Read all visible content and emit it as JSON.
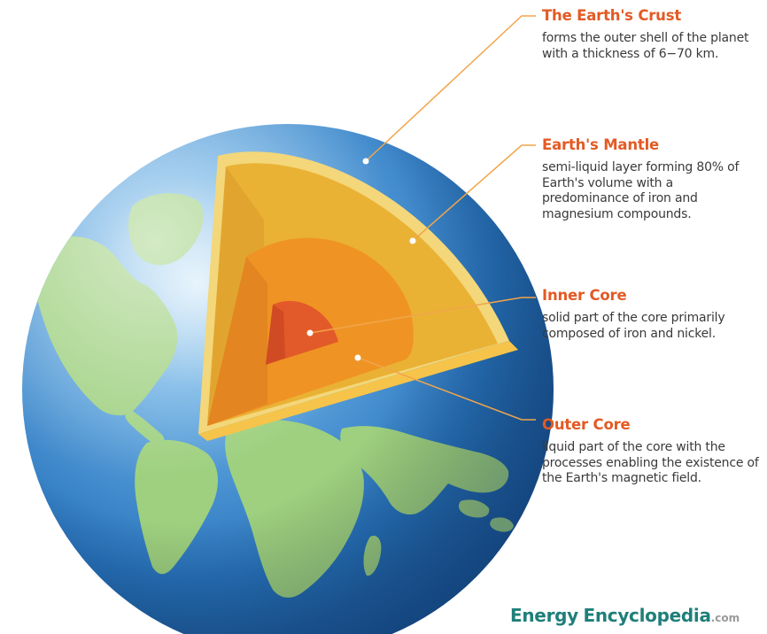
{
  "layers": [
    {
      "title": "The Earth's Crust",
      "description": "forms the outer shell of the planet with a thickness of 6−70 km."
    },
    {
      "title": "Earth's Mantle",
      "description": "semi-liquid layer forming 80% of Earth's volume with a predominance of iron and magnesium compounds."
    },
    {
      "title": "Inner Core",
      "description": "solid part of the core primarily composed of iron and nickel."
    },
    {
      "title": "Outer Core",
      "description": "liquid part of the core with the processes enabling the existence of the Earth's magnetic field."
    }
  ],
  "brand": {
    "part1": "Energy",
    "part2": "Encyclopedia",
    "part3": ".com"
  },
  "colors": {
    "ocean": "#2f7cc4",
    "land": "#9ed07f",
    "crust": "#f3d77a",
    "mantle": "#eab235",
    "outer_core": "#ef9424",
    "inner_core": "#e25a29",
    "leader_line": "#f1a54a",
    "title_orange": "#e35a24",
    "brand_teal": "#1f7f7a"
  }
}
